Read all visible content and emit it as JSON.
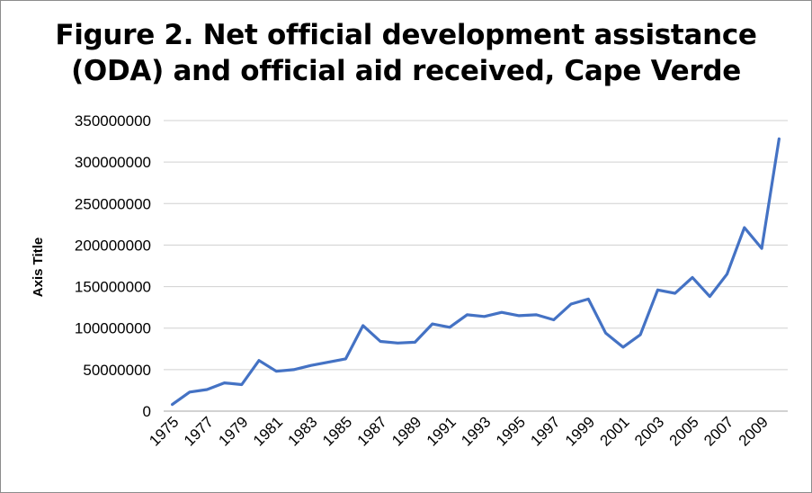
{
  "chart_data": {
    "type": "line",
    "title_line1": "Figure 2. Net official development assistance",
    "title_line2": "(ODA) and official aid received, Cape Verde",
    "xlabel": "",
    "ylabel": "Axis Title",
    "ylim": [
      0,
      350000000
    ],
    "yticks": [
      "0",
      "50000000",
      "100000000",
      "150000000",
      "200000000",
      "250000000",
      "300000000",
      "350000000"
    ],
    "xtick_labels": [
      "1975",
      "1977",
      "1979",
      "1981",
      "1983",
      "1985",
      "1987",
      "1989",
      "1991",
      "1993",
      "1995",
      "1997",
      "1999",
      "2001",
      "2003",
      "2005",
      "2007",
      "2009"
    ],
    "grid": true,
    "legend": "none",
    "line_color": "#4472c4",
    "x": [
      1975,
      1976,
      1977,
      1978,
      1979,
      1980,
      1981,
      1982,
      1983,
      1984,
      1985,
      1986,
      1987,
      1988,
      1989,
      1990,
      1991,
      1992,
      1993,
      1994,
      1995,
      1996,
      1997,
      1998,
      1999,
      2000,
      2001,
      2002,
      2003,
      2004,
      2005,
      2006,
      2007,
      2008,
      2009,
      2010
    ],
    "series": [
      {
        "values": [
          8000000,
          23000000,
          26000000,
          34000000,
          32000000,
          61000000,
          48000000,
          50000000,
          55000000,
          59000000,
          63000000,
          103000000,
          84000000,
          82000000,
          83000000,
          105000000,
          101000000,
          116000000,
          114000000,
          119000000,
          115000000,
          116000000,
          110000000,
          129000000,
          135000000,
          94000000,
          77000000,
          92000000,
          146000000,
          142000000,
          161000000,
          138000000,
          165000000,
          221000000,
          196000000,
          328000000
        ]
      }
    ]
  }
}
